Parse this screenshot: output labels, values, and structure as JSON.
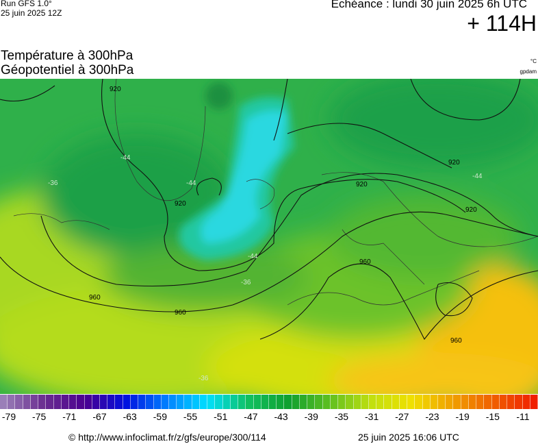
{
  "header": {
    "run": "Run GFS 1.0°",
    "date": "25 juin 2025 12Z",
    "echeance": "Echéance : lundi 30 juin 2025 6h UTC",
    "lead": "+ 114H"
  },
  "titles": {
    "line1": "Température à 300hPa",
    "line2": "Géopotentiel à 300hPa",
    "unit1": "°C",
    "unit2": "gpdam"
  },
  "map": {
    "contour_labels": [
      "920",
      "920",
      "920",
      "920",
      "920",
      "960",
      "960",
      "960",
      "960",
      "-44",
      "-44",
      "-44",
      "-44",
      "-36",
      "-36",
      "-36"
    ]
  },
  "colorbar": {
    "labels": [
      -79,
      -75,
      -71,
      -67,
      -63,
      -59,
      -55,
      -51,
      -47,
      -43,
      -39,
      -35,
      -31,
      -27,
      -23,
      -19,
      -15,
      -11
    ]
  },
  "footer": {
    "url": "© http://www.infoclimat.fr/z/gfs/europe/300/114",
    "timestamp": "25 juin 2025 16:06 UTC"
  }
}
